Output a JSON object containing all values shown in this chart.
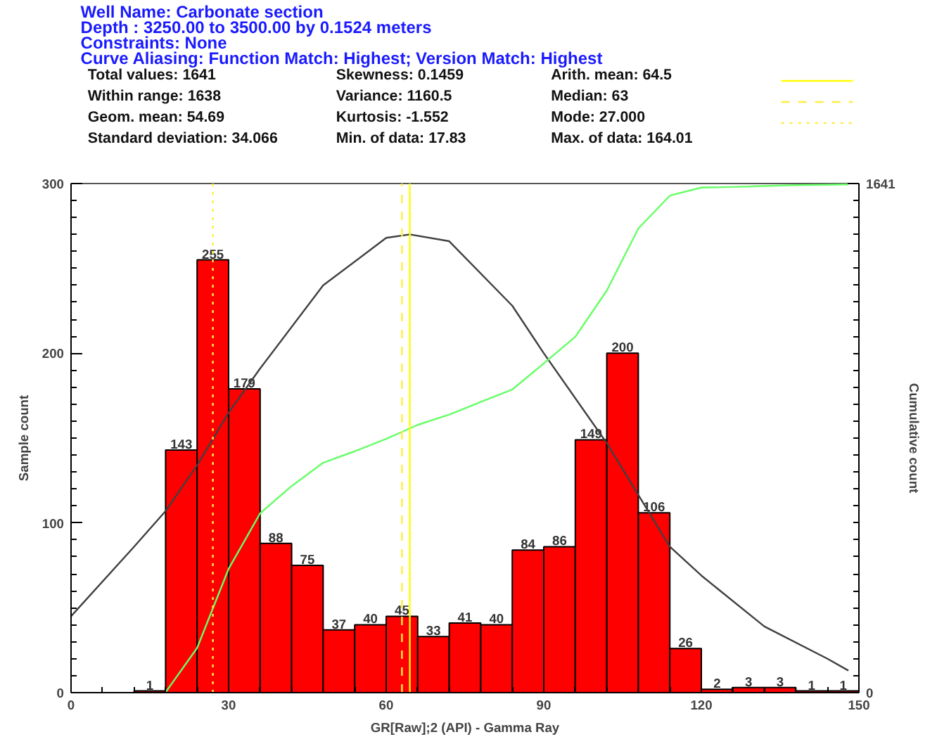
{
  "chart_data": {
    "type": "histogram",
    "title": "Well Name:     Carbonate section",
    "annotations": [
      "Depth :   3250.00 to 3500.00 by 0.1524 meters",
      "Constraints:  None",
      "Curve Aliasing:  Function Match:  Highest; Version Match:  Highest",
      "Total values: 1641",
      "Within range: 1638",
      "Geom. mean: 54.69",
      "Standard deviation:    34.066",
      "Skewness: 0.1459",
      "Variance: 1160.5",
      "Kurtosis: -1.552",
      "Min. of data: 17.83",
      "Arith. mean: 64.5",
      "Median: 63",
      "Mode: 27.000",
      "Max. of data: 164.01"
    ],
    "bins": [
      12,
      18,
      24,
      30,
      36,
      42,
      48,
      54,
      60,
      66,
      72,
      78,
      84,
      90,
      96,
      102,
      108,
      114,
      120,
      126,
      132,
      138,
      144,
      150
    ],
    "series": [
      {
        "color": "#ff0000",
        "values": [
          1,
          143,
          255,
          179,
          88,
          75,
          37,
          40,
          45,
          33,
          41,
          40,
          84,
          86,
          149,
          200,
          106,
          26,
          2,
          3,
          3,
          1,
          1
        ],
        "value_labels": [
          "1",
          "143",
          "255",
          "179",
          "88",
          "75",
          "37",
          "40",
          "45",
          "33",
          "41",
          "40",
          "84",
          "86",
          "149",
          "200",
          "106",
          "26",
          "2",
          "3",
          "3",
          "1",
          "1"
        ]
      },
      {
        "type": "line",
        "color": "#404040",
        "x": [
          0,
          12,
          18,
          24,
          30,
          36,
          48,
          60,
          64.5,
          72,
          84,
          90,
          102,
          114,
          120,
          132,
          144,
          148
        ],
        "values": [
          45,
          86,
          107,
          134,
          165,
          191,
          240,
          268,
          270,
          266,
          228,
          200,
          147,
          86,
          69,
          39,
          20,
          13
        ]
      },
      {
        "type": "line",
        "color": "#66ff66",
        "axis": "y2",
        "x": [
          18,
          24,
          30,
          36,
          42,
          48,
          54,
          60,
          66,
          72,
          78,
          84,
          90,
          96,
          102,
          108,
          114,
          120,
          126,
          132,
          138,
          144,
          148
        ],
        "values": [
          1,
          144,
          399,
          578,
          666,
          741,
          778,
          818,
          863,
          896,
          937,
          977,
          1061,
          1147,
          1296,
          1496,
          1602,
          1628,
          1630,
          1633,
          1636,
          1637,
          1638
        ]
      }
    ],
    "xlabel": "GR[Raw];2 (API) - Gamma Ray",
    "ylabel": "Sample count",
    "y2label": "Cumulative count",
    "xlim": [
      0,
      150
    ],
    "xticks": [
      0,
      30,
      60,
      90,
      120,
      150
    ],
    "ylim": [
      0,
      300
    ],
    "yticks": [
      0,
      100,
      200,
      300
    ],
    "y2lim": [
      0,
      1641
    ],
    "y2ticks": [
      0,
      1641
    ],
    "ref_lines": [
      {
        "axis": "x",
        "value": 64.5,
        "color": "#ffff00",
        "line_style": "solid"
      },
      {
        "axis": "x",
        "value": 63,
        "color": "#ffee44",
        "line_style": "dashed"
      },
      {
        "axis": "x",
        "value": 27,
        "color": "#ffee44",
        "line_style": "dotted"
      }
    ],
    "grid": false
  }
}
